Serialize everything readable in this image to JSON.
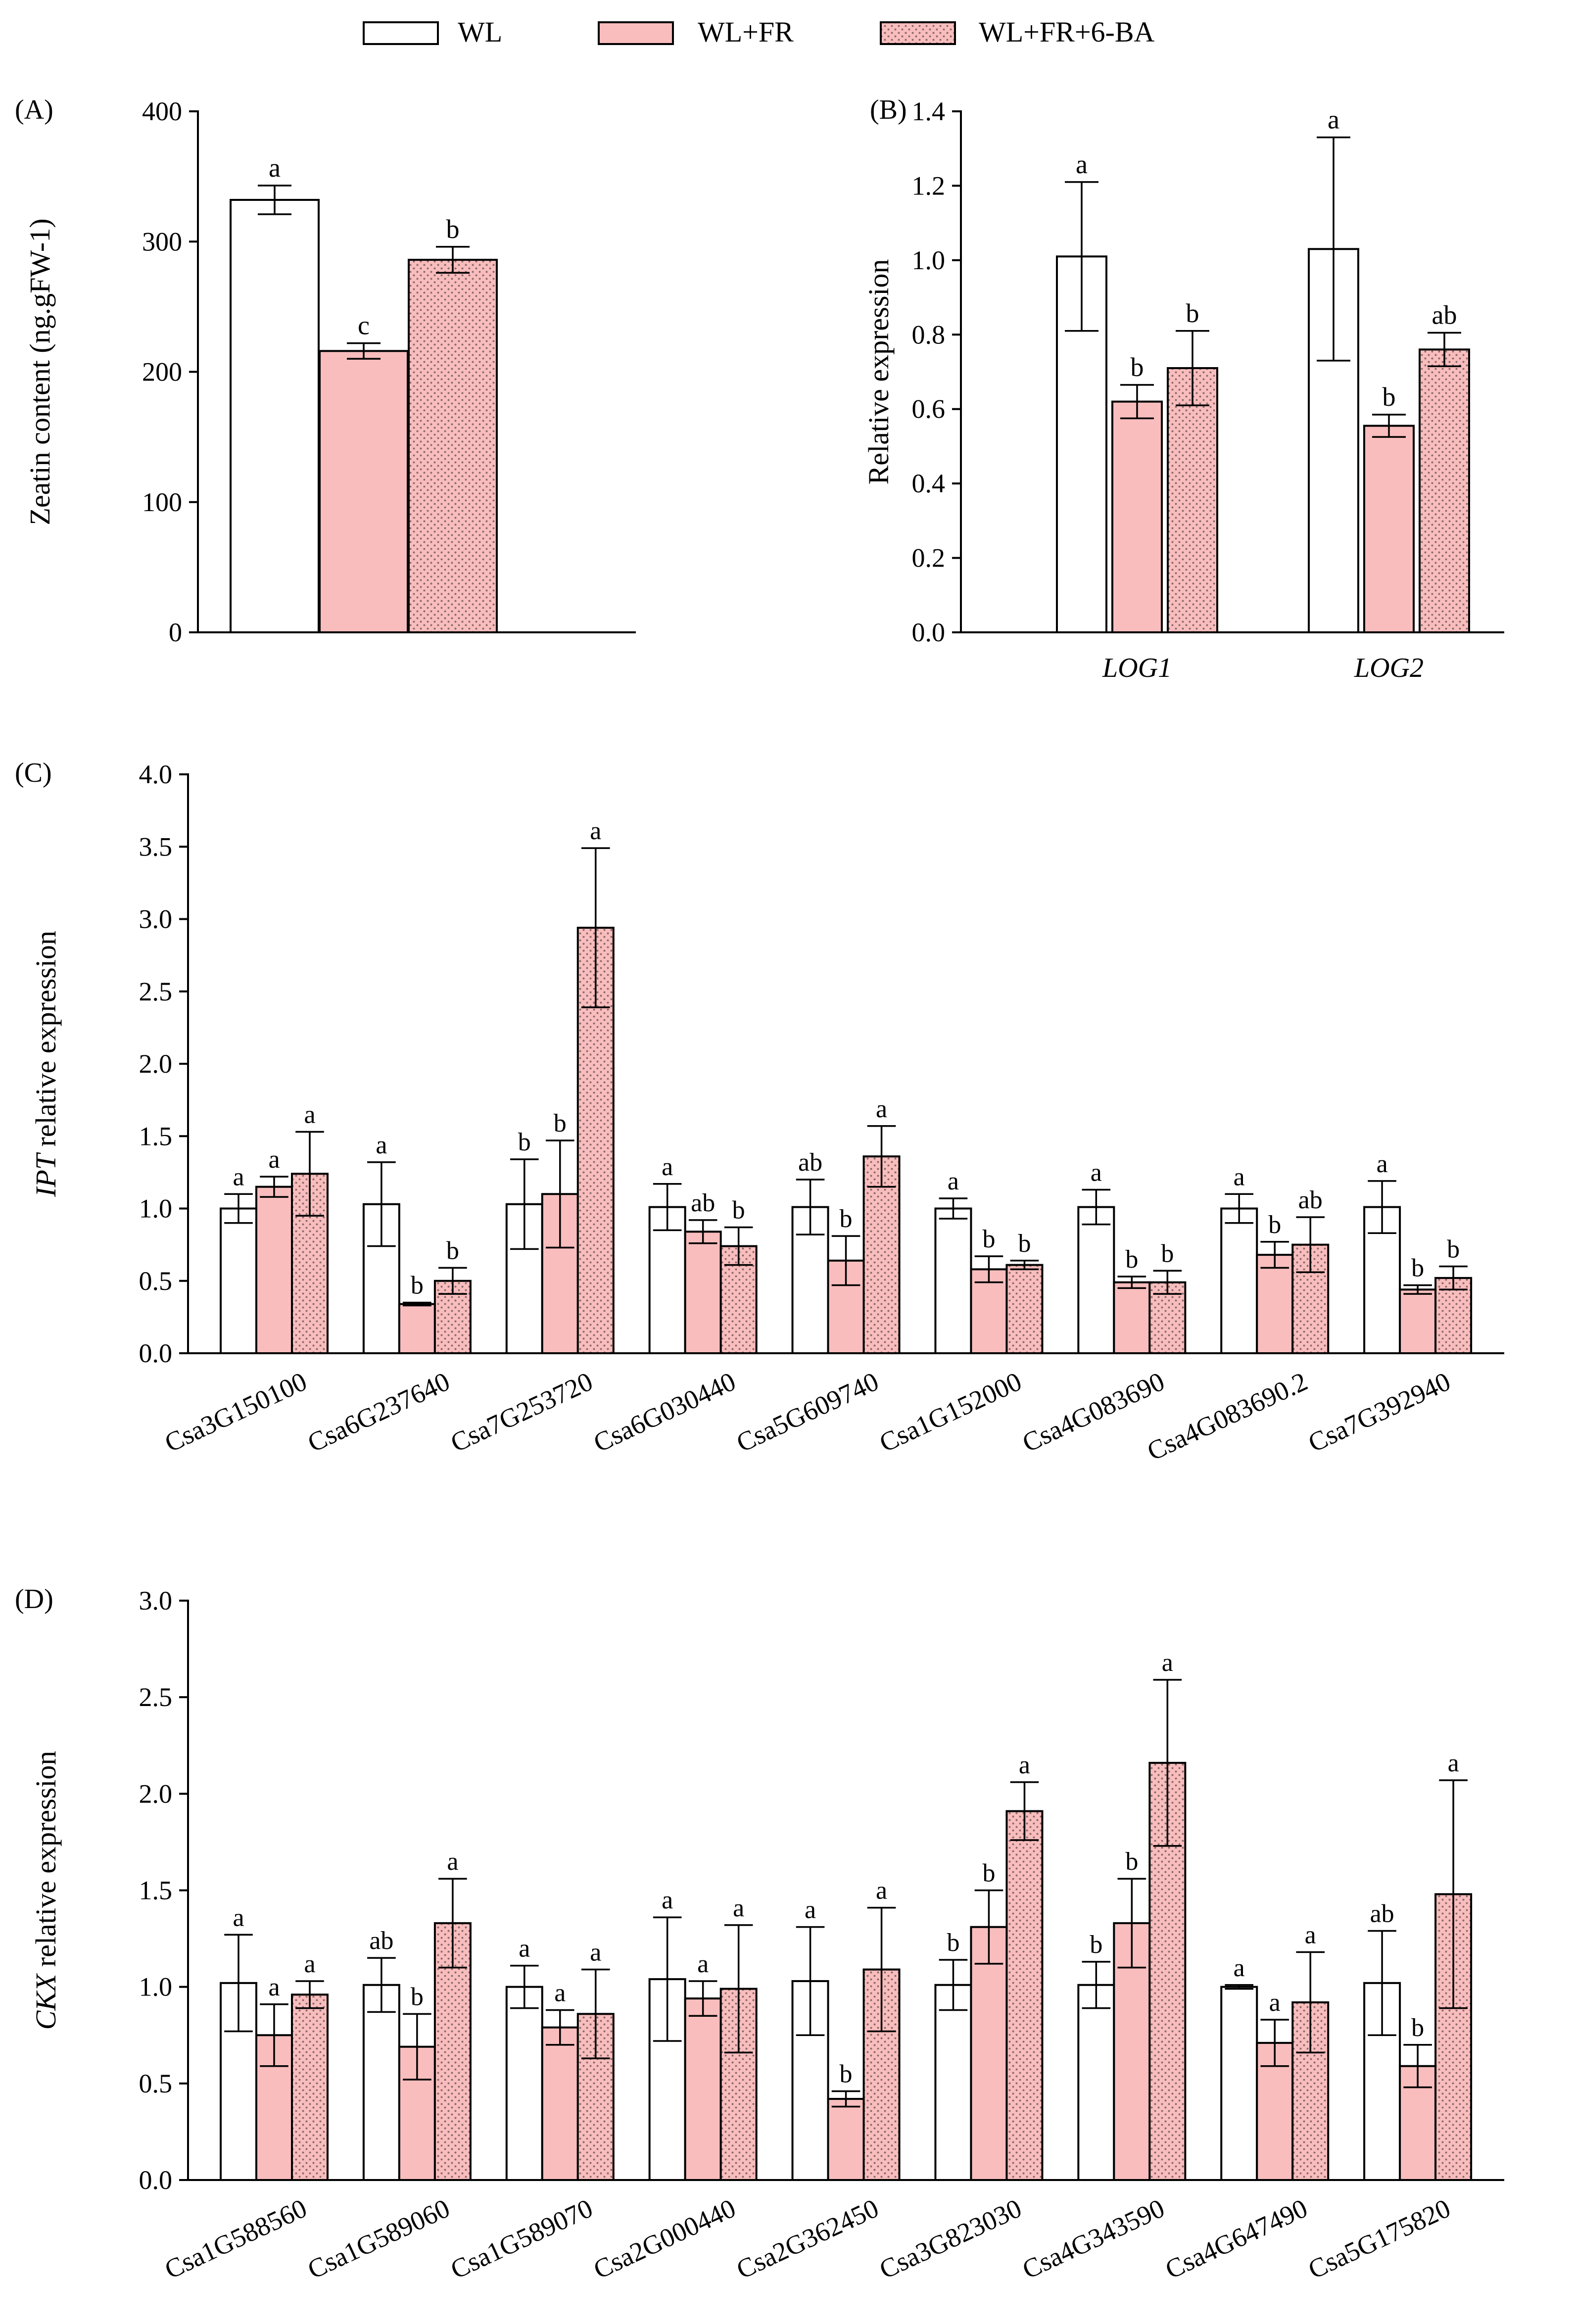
{
  "legend": [
    {
      "label": "WL",
      "pattern": "white"
    },
    {
      "label": "WL+FR",
      "pattern": "pink"
    },
    {
      "label": "WL+FR+6-BA",
      "pattern": "dots"
    }
  ],
  "colors": {
    "pink": "#f9bdbd",
    "white": "#ffffff",
    "dot": "#8a6a6a"
  },
  "chart_data": [
    {
      "panel": "(A)",
      "type": "bar",
      "ylabel": "Zeatin content (ng.gFW-1)",
      "ylim": [
        0,
        400
      ],
      "yticks": [
        "0",
        "100",
        "200",
        "300",
        "400"
      ],
      "categories": [
        ""
      ],
      "series": [
        {
          "name": "WL",
          "values": [
            332
          ],
          "errors": [
            11
          ],
          "letters": [
            "a"
          ]
        },
        {
          "name": "WL+FR",
          "values": [
            216
          ],
          "errors": [
            6
          ],
          "letters": [
            "c"
          ]
        },
        {
          "name": "WL+FR+6-BA",
          "values": [
            286
          ],
          "errors": [
            10
          ],
          "letters": [
            "b"
          ]
        }
      ]
    },
    {
      "panel": "(B)",
      "type": "bar",
      "ylabel": "Relative expression",
      "ylim": [
        0,
        1.4
      ],
      "yticks": [
        "0.0",
        "0.2",
        "0.4",
        "0.6",
        "0.8",
        "1.0",
        "1.2",
        "1.4"
      ],
      "categories": [
        "LOG1",
        "LOG2"
      ],
      "series": [
        {
          "name": "WL",
          "values": [
            1.01,
            1.03
          ],
          "errors": [
            0.2,
            0.3
          ],
          "letters": [
            "a",
            "a"
          ]
        },
        {
          "name": "WL+FR",
          "values": [
            0.62,
            0.555
          ],
          "errors": [
            0.045,
            0.03
          ],
          "letters": [
            "b",
            "b"
          ]
        },
        {
          "name": "WL+FR+6-BA",
          "values": [
            0.71,
            0.76
          ],
          "errors": [
            0.1,
            0.045
          ],
          "letters": [
            "b",
            "ab"
          ]
        }
      ]
    },
    {
      "panel": "(C)",
      "type": "bar",
      "ylabel_italic": "IPT",
      "ylabel": " relative expression",
      "ylim": [
        0,
        4.0
      ],
      "yticks": [
        "0.0",
        "0.5",
        "1.0",
        "1.5",
        "2.0",
        "2.5",
        "3.0",
        "3.5",
        "4.0"
      ],
      "categories": [
        "Csa3G150100",
        "Csa6G237640",
        "Csa7G253720",
        "Csa6G030440",
        "Csa5G609740",
        "Csa1G152000",
        "Csa4G083690",
        "Csa4G083690.2",
        "Csa7G392940"
      ],
      "series": [
        {
          "name": "WL",
          "values": [
            1.0,
            1.03,
            1.03,
            1.01,
            1.01,
            1.0,
            1.01,
            1.0,
            1.01
          ],
          "errors": [
            0.1,
            0.29,
            0.31,
            0.16,
            0.19,
            0.07,
            0.12,
            0.1,
            0.18
          ],
          "letters": [
            "a",
            "a",
            "b",
            "a",
            "ab",
            "a",
            "a",
            "a",
            "a"
          ]
        },
        {
          "name": "WL+FR",
          "values": [
            1.15,
            0.34,
            1.1,
            0.84,
            0.64,
            0.58,
            0.49,
            0.68,
            0.44
          ],
          "errors": [
            0.07,
            0.01,
            0.37,
            0.08,
            0.17,
            0.09,
            0.04,
            0.09,
            0.03
          ],
          "letters": [
            "a",
            "b",
            "b",
            "ab",
            "b",
            "b",
            "b",
            "b",
            "b"
          ]
        },
        {
          "name": "WL+FR+6-BA",
          "values": [
            1.24,
            0.5,
            2.94,
            0.74,
            1.36,
            0.61,
            0.49,
            0.75,
            0.52
          ],
          "errors": [
            0.29,
            0.09,
            0.55,
            0.13,
            0.21,
            0.03,
            0.08,
            0.19,
            0.08
          ],
          "letters": [
            "a",
            "b",
            "a",
            "b",
            "a",
            "b",
            "b",
            "ab",
            "b"
          ]
        }
      ]
    },
    {
      "panel": "(D)",
      "type": "bar",
      "ylabel_italic": "CKX",
      "ylabel": " relative expression",
      "ylim": [
        0,
        3.0
      ],
      "yticks": [
        "0.0",
        "0.5",
        "1.0",
        "1.5",
        "2.0",
        "2.5",
        "3.0"
      ],
      "categories": [
        "Csa1G588560",
        "Csa1G589060",
        "Csa1G589070",
        "Csa2G000440",
        "Csa2G362450",
        "Csa3G823030",
        "Csa4G343590",
        "Csa4G647490",
        "Csa5G175820"
      ],
      "series": [
        {
          "name": "WL",
          "values": [
            1.02,
            1.01,
            1.0,
            1.04,
            1.03,
            1.01,
            1.01,
            1.0,
            1.02
          ],
          "errors": [
            0.25,
            0.14,
            0.11,
            0.32,
            0.28,
            0.13,
            0.12,
            0.01,
            0.27
          ],
          "letters": [
            "a",
            "ab",
            "a",
            "a",
            "a",
            "b",
            "b",
            "a",
            "ab"
          ]
        },
        {
          "name": "WL+FR",
          "values": [
            0.75,
            0.69,
            0.79,
            0.94,
            0.42,
            1.31,
            1.33,
            0.71,
            0.59
          ],
          "errors": [
            0.16,
            0.17,
            0.09,
            0.09,
            0.04,
            0.19,
            0.23,
            0.12,
            0.11
          ],
          "letters": [
            "a",
            "b",
            "a",
            "a",
            "b",
            "b",
            "b",
            "a",
            "b"
          ]
        },
        {
          "name": "WL+FR+6-BA",
          "values": [
            0.96,
            1.33,
            0.86,
            0.99,
            1.09,
            1.91,
            2.16,
            0.92,
            1.48
          ],
          "errors": [
            0.07,
            0.23,
            0.23,
            0.33,
            0.32,
            0.15,
            0.43,
            0.26,
            0.59
          ],
          "letters": [
            "a",
            "a",
            "a",
            "a",
            "a",
            "a",
            "a",
            "a",
            "a"
          ]
        }
      ]
    }
  ]
}
